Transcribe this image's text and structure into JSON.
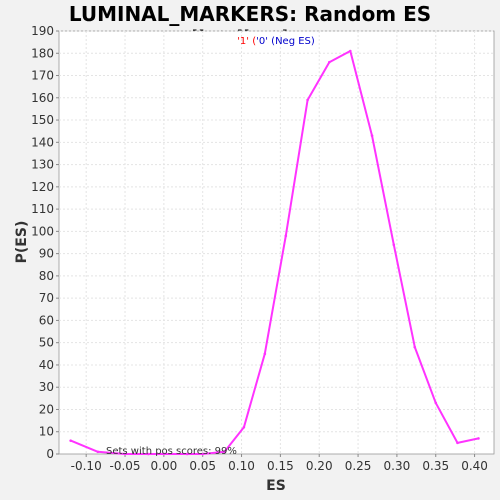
{
  "chart_data": {
    "type": "line",
    "title": "LUMINAL_MARKERS: Random ES distribution",
    "xlabel": "ES",
    "ylabel": "P(ES)",
    "xlim": [
      -0.135,
      0.425
    ],
    "ylim": [
      0,
      190
    ],
    "xticks": [
      -0.1,
      -0.05,
      0.0,
      0.05,
      0.1,
      0.15,
      0.2,
      0.25,
      0.3,
      0.35,
      0.4
    ],
    "xtick_labels": [
      "-0.10",
      "-0.05",
      "0.00",
      "0.05",
      "0.10",
      "0.15",
      "0.20",
      "0.25",
      "0.30",
      "0.35",
      "0.40"
    ],
    "yticks": [
      0,
      10,
      20,
      30,
      40,
      50,
      60,
      70,
      80,
      90,
      100,
      110,
      120,
      130,
      140,
      150,
      160,
      170,
      180,
      190
    ],
    "grid": true,
    "legend": {
      "placement": "top-center",
      "part1": "'1' (",
      "part2": "'0' (Neg ES)",
      "color1": "#ff0000",
      "color2": "#0000cc"
    },
    "annotation": "Sets with pos scores: 99%",
    "line_color": "#ff33ff",
    "series": [
      {
        "x": [
          -0.12,
          -0.085,
          -0.05,
          -0.02,
          0.0,
          0.03,
          0.05,
          0.078,
          0.103,
          0.13,
          0.157,
          0.185,
          0.213,
          0.24,
          0.268,
          0.296,
          0.323,
          0.35,
          0.378,
          0.405
        ],
        "values": [
          6,
          1,
          0,
          0,
          0,
          0,
          0,
          1,
          12,
          45,
          98,
          159,
          176,
          181,
          143,
          94,
          48,
          23,
          5,
          7
        ]
      }
    ]
  }
}
